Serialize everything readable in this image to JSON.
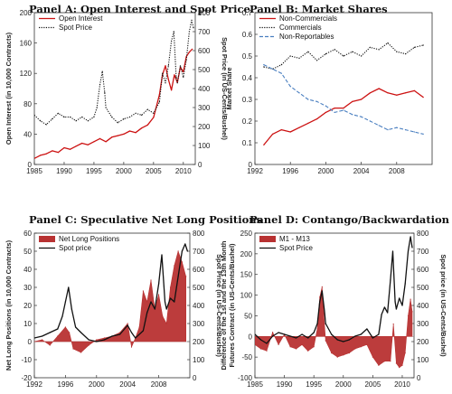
{
  "chart_data": [
    {
      "id": "A",
      "type": "line",
      "title": "Panel A: Open Interest and Spot Price",
      "ylabel": "Open Interest  (in 10,000 Contracts)",
      "ylabel_right": "Spot Price (in US-Cents/Bushel)",
      "xlim": [
        1985,
        2012
      ],
      "ylim": [
        0,
        200
      ],
      "ylim_right": [
        0,
        800
      ],
      "xticks": [
        1985,
        1990,
        1995,
        2000,
        2005,
        2010
      ],
      "yticks": [
        0,
        40,
        80,
        120,
        160,
        200
      ],
      "yticks_right": [
        0,
        100,
        200,
        300,
        400,
        500,
        600,
        700,
        800
      ],
      "legend_position": "top-left",
      "series": [
        {
          "name": "Open Interest",
          "axis": "left",
          "color": "#cc1111",
          "style": "solid",
          "x": [
            1985,
            1986,
            1987,
            1988,
            1989,
            1990,
            1991,
            1992,
            1993,
            1994,
            1995,
            1996,
            1997,
            1998,
            1999,
            2000,
            2001,
            2002,
            2003,
            2004,
            2005,
            2006,
            2006.5,
            2007,
            2007.5,
            2008,
            2008.5,
            2009,
            2009.5,
            2010,
            2010.5,
            2011,
            2011.5
          ],
          "y": [
            8,
            12,
            14,
            18,
            16,
            22,
            20,
            24,
            28,
            26,
            30,
            34,
            30,
            36,
            38,
            40,
            44,
            42,
            48,
            52,
            62,
            92,
            118,
            130,
            112,
            98,
            118,
            108,
            128,
            122,
            142,
            148,
            152
          ]
        },
        {
          "name": "Spot Price",
          "axis": "right",
          "color": "#111111",
          "style": "dotted",
          "x": [
            1985,
            1986,
            1987,
            1988,
            1989,
            1990,
            1991,
            1992,
            1993,
            1994,
            1995,
            1995.5,
            1996,
            1996.4,
            1996.8,
            1997,
            1998,
            1999,
            2000,
            2001,
            2002,
            2003,
            2004,
            2005,
            2006,
            2006.5,
            2007,
            2007.5,
            2008,
            2008.4,
            2008.8,
            2009,
            2009.5,
            2010,
            2010.5,
            2011,
            2011.4,
            2011.7
          ],
          "y": [
            260,
            230,
            210,
            240,
            270,
            250,
            250,
            230,
            250,
            230,
            250,
            300,
            420,
            490,
            380,
            300,
            250,
            220,
            240,
            250,
            270,
            260,
            290,
            270,
            330,
            480,
            430,
            520,
            650,
            700,
            460,
            430,
            520,
            460,
            550,
            700,
            760,
            720
          ]
        }
      ]
    },
    {
      "id": "B",
      "type": "line",
      "title": "Panel B: Market Shares",
      "ylabel": "Market Share",
      "xlim": [
        1992,
        2012
      ],
      "ylim": [
        0,
        0.7
      ],
      "xticks": [
        1992,
        1996,
        2000,
        2004,
        2008
      ],
      "yticks": [
        0.0,
        0.1,
        0.2,
        0.3,
        0.4,
        0.5,
        0.6,
        0.7
      ],
      "legend_position": "top-left",
      "series": [
        {
          "name": "Non-Commercials",
          "color": "#cc1111",
          "style": "solid",
          "x": [
            1993,
            1994,
            1995,
            1996,
            1997,
            1998,
            1999,
            2000,
            2001,
            2002,
            2003,
            2004,
            2005,
            2006,
            2007,
            2008,
            2009,
            2010,
            2011
          ],
          "y": [
            0.09,
            0.14,
            0.16,
            0.15,
            0.17,
            0.19,
            0.21,
            0.24,
            0.26,
            0.26,
            0.29,
            0.3,
            0.33,
            0.35,
            0.33,
            0.32,
            0.33,
            0.34,
            0.31
          ]
        },
        {
          "name": "Commercials",
          "color": "#111111",
          "style": "dotted",
          "x": [
            1993,
            1994,
            1995,
            1996,
            1997,
            1998,
            1999,
            2000,
            2001,
            2002,
            2003,
            2004,
            2005,
            2006,
            2007,
            2008,
            2009,
            2010,
            2011
          ],
          "y": [
            0.45,
            0.44,
            0.46,
            0.5,
            0.49,
            0.52,
            0.48,
            0.51,
            0.53,
            0.5,
            0.52,
            0.5,
            0.54,
            0.53,
            0.56,
            0.52,
            0.51,
            0.54,
            0.55
          ]
        },
        {
          "name": "Non-Reportables",
          "color": "#4a7fc0",
          "style": "dashed",
          "x": [
            1993,
            1994,
            1995,
            1996,
            1997,
            1998,
            1999,
            2000,
            2001,
            2002,
            2003,
            2004,
            2005,
            2006,
            2007,
            2008,
            2009,
            2010,
            2011
          ],
          "y": [
            0.46,
            0.44,
            0.42,
            0.36,
            0.33,
            0.3,
            0.29,
            0.27,
            0.24,
            0.25,
            0.23,
            0.22,
            0.2,
            0.18,
            0.16,
            0.17,
            0.16,
            0.15,
            0.14
          ]
        }
      ]
    },
    {
      "id": "C",
      "type": "area",
      "title": "Panel C: Speculative Net Long Positions",
      "ylabel": "Net Long Positions  (in 10,000 Contracts)",
      "ylabel_right": "Spot Price (in US-Cents/Bushel)",
      "xlim": [
        1992,
        2012
      ],
      "ylim": [
        -20,
        60
      ],
      "ylim_right": [
        0,
        800
      ],
      "xticks": [
        1992,
        1996,
        2000,
        2004,
        2008
      ],
      "yticks": [
        -20,
        -10,
        0,
        10,
        20,
        30,
        40,
        50,
        60
      ],
      "yticks_right": [
        0,
        100,
        200,
        300,
        400,
        500,
        600,
        700,
        800
      ],
      "legend_position": "top-left",
      "series": [
        {
          "name": "Net Long Positions",
          "axis": "left",
          "color": "#b83232",
          "style": "area",
          "x": [
            1992,
            1993,
            1994,
            1995,
            1996,
            1996.5,
            1997,
            1998,
            1999,
            2000,
            2001,
            2002,
            2003,
            2004,
            2004.5,
            2005,
            2005.5,
            2006,
            2006.5,
            2007,
            2007.5,
            2008,
            2008.5,
            2009,
            2009.5,
            2010,
            2010.5,
            2011,
            2011.5
          ],
          "y": [
            0,
            1,
            -2,
            3,
            8,
            5,
            -4,
            -6,
            -2,
            1,
            2,
            3,
            5,
            10,
            -3,
            2,
            8,
            28,
            22,
            34,
            18,
            26,
            14,
            10,
            30,
            42,
            50,
            44,
            36
          ]
        },
        {
          "name": "Spot price",
          "axis": "right",
          "color": "#111111",
          "style": "solid",
          "x": [
            1992,
            1993,
            1994,
            1995,
            1995.6,
            1996,
            1996.4,
            1996.8,
            1997.3,
            1998,
            1999,
            2000,
            2001,
            2002,
            2003,
            2004,
            2004.5,
            2005,
            2006,
            2006.5,
            2007,
            2007.5,
            2008,
            2008.4,
            2008.8,
            2009,
            2009.5,
            2010,
            2010.5,
            2011,
            2011.4,
            2011.7
          ],
          "y": [
            220,
            230,
            250,
            270,
            340,
            420,
            500,
            380,
            280,
            250,
            210,
            200,
            210,
            230,
            240,
            290,
            250,
            220,
            260,
            360,
            420,
            380,
            520,
            680,
            420,
            380,
            440,
            420,
            560,
            700,
            740,
            700
          ]
        }
      ]
    },
    {
      "id": "D",
      "type": "area",
      "title": "Panel D: Contango/Backwardation",
      "ylabel": "Difference of the 1st and the 13th Month Futures Contract (in US-Cents/Bushel)",
      "ylabel_right": "Spot price (in US-Cents/Bushel)",
      "xlim": [
        1985,
        2012
      ],
      "ylim": [
        -100,
        250
      ],
      "ylim_right": [
        0,
        800
      ],
      "xticks": [
        1985,
        1990,
        1995,
        2000,
        2005,
        2010
      ],
      "yticks": [
        -100,
        -50,
        0,
        50,
        100,
        150,
        200,
        250
      ],
      "yticks_right": [
        0,
        100,
        200,
        300,
        400,
        500,
        600,
        700,
        800
      ],
      "legend_position": "top-left",
      "series": [
        {
          "name": "M1 - M13",
          "axis": "left",
          "color": "#b83232",
          "style": "area",
          "x": [
            1985,
            1986,
            1987,
            1988,
            1989,
            1990,
            1991,
            1992,
            1993,
            1994,
            1995,
            1995.6,
            1996,
            1996.4,
            1996.8,
            1997,
            1998,
            1999,
            2000,
            2001,
            2002,
            2003,
            2004,
            2005,
            2006,
            2007,
            2008,
            2008.5,
            2009,
            2009.5,
            2010,
            2010.5,
            2011,
            2011.4,
            2011.7
          ],
          "y": [
            -20,
            -30,
            -35,
            10,
            -20,
            5,
            -25,
            -30,
            -20,
            -35,
            -25,
            20,
            95,
            120,
            30,
            -10,
            -40,
            -50,
            -45,
            -40,
            -30,
            -25,
            -20,
            -50,
            -70,
            -60,
            -60,
            30,
            -65,
            -75,
            -70,
            -40,
            50,
            90,
            60
          ]
        },
        {
          "name": "Spot Price",
          "axis": "right",
          "color": "#111111",
          "style": "solid",
          "x": [
            1985,
            1986,
            1987,
            1988,
            1989,
            1990,
            1991,
            1992,
            1993,
            1994,
            1995,
            1995.6,
            1996,
            1996.4,
            1996.8,
            1997,
            1998,
            1999,
            2000,
            2001,
            2002,
            2003,
            2004,
            2005,
            2006,
            2006.5,
            2007,
            2007.5,
            2008,
            2008.4,
            2008.8,
            2009,
            2009.5,
            2010,
            2010.5,
            2011,
            2011.4,
            2011.7
          ],
          "y": [
            240,
            210,
            190,
            230,
            250,
            240,
            230,
            220,
            240,
            220,
            250,
            300,
            420,
            480,
            370,
            300,
            240,
            210,
            200,
            210,
            230,
            240,
            270,
            220,
            240,
            350,
            390,
            360,
            540,
            700,
            420,
            380,
            440,
            400,
            520,
            700,
            780,
            720
          ]
        }
      ]
    }
  ]
}
